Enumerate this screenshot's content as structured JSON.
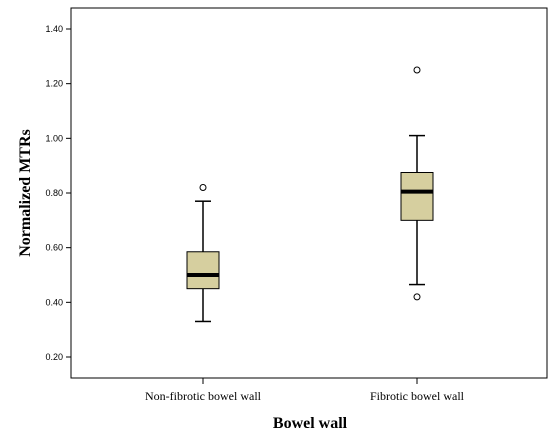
{
  "chart_data": {
    "type": "boxplot",
    "title": "",
    "xlabel": "Bowel wall",
    "ylabel": "Normalized MTRs",
    "ylim": [
      0.15,
      1.45
    ],
    "yticks": [
      "0.20",
      "0.40",
      "0.60",
      "0.80",
      "1.00",
      "1.20",
      "1.40"
    ],
    "yticks_values": [
      0.2,
      0.4,
      0.6,
      0.8,
      1.0,
      1.2,
      1.4
    ],
    "grid": false,
    "box_color": "#d6cf9f",
    "categories": [
      "Non-fibrotic bowel wall",
      "Fibrotic bowel wall"
    ],
    "boxes": [
      {
        "whisker_low": 0.33,
        "q1": 0.45,
        "median": 0.5,
        "q3": 0.585,
        "whisker_high": 0.77,
        "outliers": [
          0.82
        ]
      },
      {
        "whisker_low": 0.465,
        "q1": 0.7,
        "median": 0.805,
        "q3": 0.875,
        "whisker_high": 1.01,
        "outliers": [
          0.42,
          1.25
        ]
      }
    ]
  }
}
